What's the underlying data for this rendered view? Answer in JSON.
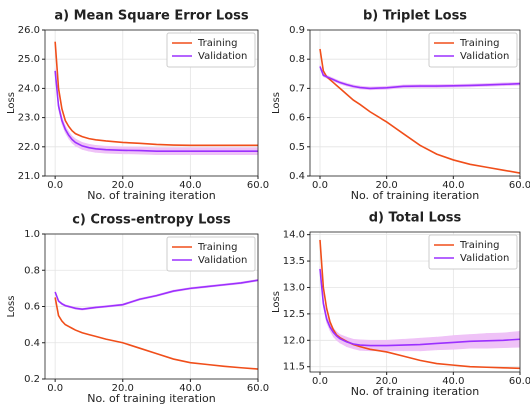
{
  "chart_data": [
    {
      "type": "line",
      "title": "a) Mean Square Error Loss",
      "x_label": "No. of training iteration",
      "y_label": "Loss",
      "x": [
        0,
        1,
        2,
        3,
        4,
        5,
        6,
        8,
        10,
        12,
        15,
        20,
        25,
        30,
        35,
        40,
        45,
        50,
        55,
        60
      ],
      "xlim": [
        -3,
        60
      ],
      "xticks": [
        {
          "value": 0,
          "label": "0.0"
        },
        {
          "value": 20,
          "label": "20.0"
        },
        {
          "value": 40,
          "label": "40.0"
        },
        {
          "value": 60,
          "label": "60.0"
        }
      ],
      "ylim": [
        21,
        26
      ],
      "yticks": [
        {
          "value": 21,
          "label": "21.0"
        },
        {
          "value": 22,
          "label": "22.0"
        },
        {
          "value": 23,
          "label": "23.0"
        },
        {
          "value": 24,
          "label": "24.0"
        },
        {
          "value": 25,
          "label": "25.0"
        },
        {
          "value": 26,
          "label": "26.0"
        }
      ],
      "grid": true,
      "legend": "upper right",
      "series": [
        {
          "name": "Training",
          "color": "#f04e1a",
          "values": [
            25.6,
            24.0,
            23.3,
            22.9,
            22.7,
            22.55,
            22.45,
            22.35,
            22.28,
            22.24,
            22.2,
            22.15,
            22.12,
            22.08,
            22.06,
            22.05,
            22.05,
            22.05,
            22.05,
            22.05
          ]
        },
        {
          "name": "Validation",
          "color": "#9b30ff",
          "band_color": "#efc2f7",
          "values": [
            24.6,
            23.4,
            22.9,
            22.6,
            22.4,
            22.25,
            22.15,
            22.03,
            21.97,
            21.93,
            21.9,
            21.88,
            21.87,
            21.85,
            21.85,
            21.85,
            21.85,
            21.85,
            21.85,
            21.85
          ],
          "spread": [
            0.1,
            0.12,
            0.12,
            0.12,
            0.12,
            0.12,
            0.12,
            0.12,
            0.12,
            0.12,
            0.12,
            0.12,
            0.12,
            0.12,
            0.12,
            0.12,
            0.12,
            0.12,
            0.12,
            0.12
          ]
        }
      ]
    },
    {
      "type": "line",
      "title": "b) Triplet Loss",
      "x_label": "No. of training iteration",
      "y_label": "Loss",
      "x": [
        0,
        1,
        2,
        3,
        4,
        5,
        6,
        8,
        10,
        12,
        15,
        20,
        25,
        30,
        35,
        40,
        45,
        50,
        55,
        60
      ],
      "xlim": [
        -3,
        60
      ],
      "xticks": [
        {
          "value": 0,
          "label": "0.0"
        },
        {
          "value": 20,
          "label": "20.0"
        },
        {
          "value": 40,
          "label": "40.0"
        },
        {
          "value": 60,
          "label": "60.0"
        }
      ],
      "ylim": [
        0.4,
        0.9
      ],
      "yticks": [
        0.4,
        0.5,
        0.6,
        0.7,
        0.8,
        0.9
      ],
      "grid": true,
      "legend": "upper right",
      "series": [
        {
          "name": "Training",
          "color": "#f04e1a",
          "values": [
            0.835,
            0.76,
            0.74,
            0.73,
            0.72,
            0.71,
            0.7,
            0.68,
            0.66,
            0.645,
            0.62,
            0.585,
            0.545,
            0.505,
            0.475,
            0.455,
            0.44,
            0.43,
            0.42,
            0.41
          ]
        },
        {
          "name": "Validation",
          "color": "#9b30ff",
          "band_color": "#efc2f7",
          "values": [
            0.775,
            0.745,
            0.74,
            0.735,
            0.73,
            0.725,
            0.72,
            0.713,
            0.707,
            0.703,
            0.7,
            0.702,
            0.707,
            0.708,
            0.708,
            0.709,
            0.71,
            0.712,
            0.714,
            0.716
          ],
          "spread": [
            0.005,
            0.005,
            0.005,
            0.005,
            0.005,
            0.005,
            0.005,
            0.005,
            0.005,
            0.005,
            0.005,
            0.005,
            0.005,
            0.005,
            0.005,
            0.005,
            0.005,
            0.005,
            0.005,
            0.005
          ]
        }
      ]
    },
    {
      "type": "line",
      "title": "c) Cross-entropy Loss",
      "x_label": "No. of training iteration",
      "y_label": "Loss",
      "x": [
        0,
        1,
        2,
        3,
        4,
        5,
        6,
        8,
        10,
        12,
        15,
        20,
        25,
        30,
        35,
        40,
        45,
        50,
        55,
        60
      ],
      "xlim": [
        -3,
        60
      ],
      "xticks": [
        {
          "value": 0,
          "label": "0.0"
        },
        {
          "value": 20,
          "label": "20.0"
        },
        {
          "value": 40,
          "label": "40.0"
        },
        {
          "value": 60,
          "label": "60.0"
        }
      ],
      "ylim": [
        0.2,
        1.0
      ],
      "yticks": [
        0.2,
        0.4,
        0.6,
        0.8,
        {
          "value": 1.0,
          "label": "1.0"
        }
      ],
      "grid": true,
      "legend": "upper right",
      "series": [
        {
          "name": "Training",
          "color": "#f04e1a",
          "values": [
            0.65,
            0.55,
            0.52,
            0.5,
            0.49,
            0.48,
            0.47,
            0.455,
            0.445,
            0.435,
            0.42,
            0.4,
            0.37,
            0.34,
            0.31,
            0.29,
            0.28,
            0.27,
            0.262,
            0.255
          ]
        },
        {
          "name": "Validation",
          "color": "#9b30ff",
          "band_color": "#efc2f7",
          "values": [
            0.68,
            0.63,
            0.615,
            0.605,
            0.6,
            0.595,
            0.59,
            0.585,
            0.59,
            0.595,
            0.6,
            0.61,
            0.64,
            0.66,
            0.685,
            0.7,
            0.71,
            0.72,
            0.73,
            0.745
          ],
          "spread": [
            0.005,
            0.005,
            0.005,
            0.005,
            0.005,
            0.005,
            0.005,
            0.005,
            0.005,
            0.005,
            0.005,
            0.005,
            0.005,
            0.005,
            0.005,
            0.005,
            0.005,
            0.005,
            0.005,
            0.005
          ]
        }
      ]
    },
    {
      "type": "line",
      "title": "d) Total Loss",
      "x_label": "No. of training iteration",
      "y_label": "Loss",
      "x": [
        0,
        1,
        2,
        3,
        4,
        5,
        6,
        8,
        10,
        12,
        15,
        20,
        25,
        30,
        35,
        40,
        45,
        50,
        55,
        60
      ],
      "xlim": [
        -3,
        60
      ],
      "xticks": [
        {
          "value": 0,
          "label": "0.0"
        },
        {
          "value": 20,
          "label": "20.0"
        },
        {
          "value": 40,
          "label": "40.0"
        },
        {
          "value": 60,
          "label": "60.0"
        }
      ],
      "ylim": [
        11.4,
        14.05
      ],
      "yticks": [
        11.5,
        {
          "value": 12,
          "label": "12.0"
        },
        12.5,
        {
          "value": 13,
          "label": "13.0"
        },
        13.5,
        {
          "value": 14,
          "label": "14.0"
        }
      ],
      "grid": true,
      "legend": "upper right",
      "series": [
        {
          "name": "Training",
          "color": "#f04e1a",
          "values": [
            13.9,
            13.0,
            12.6,
            12.35,
            12.2,
            12.1,
            12.05,
            11.98,
            11.92,
            11.88,
            11.83,
            11.78,
            11.7,
            11.62,
            11.56,
            11.53,
            11.5,
            11.49,
            11.48,
            11.47
          ]
        },
        {
          "name": "Validation",
          "color": "#9b30ff",
          "band_color": "#efc2f7",
          "values": [
            13.35,
            12.7,
            12.4,
            12.25,
            12.15,
            12.08,
            12.03,
            11.97,
            11.93,
            11.91,
            11.9,
            11.9,
            11.91,
            11.92,
            11.94,
            11.96,
            11.98,
            11.99,
            12.0,
            12.02
          ],
          "spread": [
            0.05,
            0.06,
            0.07,
            0.07,
            0.08,
            0.08,
            0.08,
            0.09,
            0.09,
            0.1,
            0.1,
            0.1,
            0.11,
            0.12,
            0.12,
            0.13,
            0.13,
            0.14,
            0.14,
            0.15
          ]
        }
      ]
    }
  ]
}
